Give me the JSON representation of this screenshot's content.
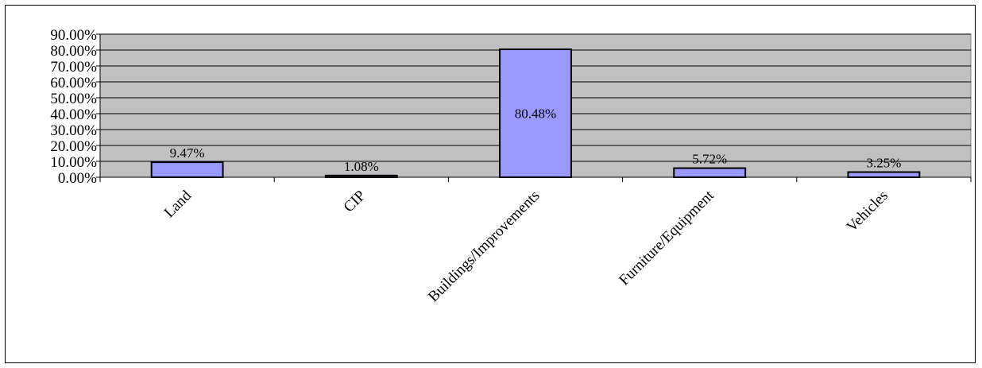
{
  "chart_data": {
    "type": "bar",
    "categories": [
      "Land",
      "CIP",
      "Buildings/Improvements",
      "Furniture/Equipment",
      "Vehicles"
    ],
    "values": [
      9.47,
      1.08,
      80.48,
      5.72,
      3.25
    ],
    "data_labels": [
      "9.47%",
      "1.08%",
      "80.48%",
      "5.72%",
      "3.25%"
    ],
    "y_ticks": [
      0,
      10,
      20,
      30,
      40,
      50,
      60,
      70,
      80,
      90
    ],
    "y_tick_labels": [
      "0.00%",
      "10.00%",
      "20.00%",
      "30.00%",
      "40.00%",
      "50.00%",
      "60.00%",
      "70.00%",
      "80.00%",
      "90.00%"
    ],
    "ylim": [
      0,
      90
    ],
    "title": "",
    "xlabel": "",
    "ylabel": "",
    "grid": true,
    "legend": "none",
    "colors": {
      "plot_background": "#c0c0c0",
      "bar_fill": "#9999ff",
      "bar_stroke": "#000000",
      "gridline": "#000000"
    }
  }
}
